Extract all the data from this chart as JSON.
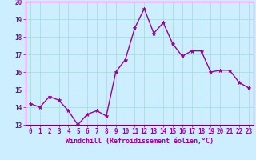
{
  "x": [
    0,
    1,
    2,
    3,
    4,
    5,
    6,
    7,
    8,
    9,
    10,
    11,
    12,
    13,
    14,
    15,
    16,
    17,
    18,
    19,
    20,
    21,
    22,
    23
  ],
  "y": [
    14.2,
    14.0,
    14.6,
    14.4,
    13.8,
    13.0,
    13.6,
    13.8,
    13.5,
    16.0,
    16.7,
    18.5,
    19.6,
    18.2,
    18.8,
    17.6,
    16.9,
    17.2,
    17.2,
    16.0,
    16.1,
    16.1,
    15.4,
    15.1
  ],
  "line_color": "#990099",
  "marker": "*",
  "marker_size": 3.5,
  "bg_color": "#cceeff",
  "grid_color": "#aadddd",
  "xlabel": "Windchill (Refroidissement éolien,°C)",
  "ylim": [
    13,
    20
  ],
  "xlim": [
    -0.5,
    23.5
  ],
  "yticks": [
    13,
    14,
    15,
    16,
    17,
    18,
    19,
    20
  ],
  "xticks": [
    0,
    1,
    2,
    3,
    4,
    5,
    6,
    7,
    8,
    9,
    10,
    11,
    12,
    13,
    14,
    15,
    16,
    17,
    18,
    19,
    20,
    21,
    22,
    23
  ],
  "tick_color": "#990099",
  "tick_fontsize": 5.5,
  "xlabel_fontsize": 6.0,
  "spine_color": "#770077",
  "linewidth": 1.0
}
